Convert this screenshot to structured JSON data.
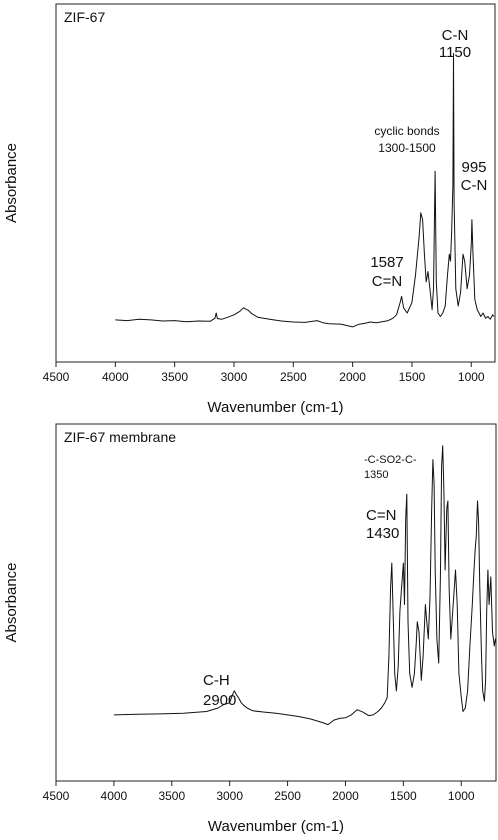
{
  "chart_data": [
    {
      "type": "line",
      "title": "ZIF-67",
      "xlabel": "Wavenumber (cm-1)",
      "ylabel": "Absorbance",
      "xlim": [
        4500,
        800
      ],
      "xticks": [
        4500,
        4000,
        3500,
        3000,
        2500,
        2000,
        1500,
        1000
      ],
      "ylim": [
        0,
        1
      ],
      "grid": false,
      "annotations": [
        {
          "lines": [
            "C-N",
            "1150"
          ],
          "x": 1150
        },
        {
          "lines": [
            "cyclic bonds",
            "1300-1500"
          ],
          "x": 1400
        },
        {
          "lines": [
            "995",
            "C-N"
          ],
          "x": 995
        },
        {
          "lines": [
            "1587",
            "C=N"
          ],
          "x": 1587
        }
      ],
      "series": [
        {
          "values": [
            [
              4000,
              0.11
            ],
            [
              3900,
              0.108
            ],
            [
              3800,
              0.112
            ],
            [
              3700,
              0.11
            ],
            [
              3600,
              0.107
            ],
            [
              3500,
              0.108
            ],
            [
              3400,
              0.105
            ],
            [
              3300,
              0.107
            ],
            [
              3200,
              0.106
            ],
            [
              3160,
              0.115
            ],
            [
              3150,
              0.13
            ],
            [
              3140,
              0.114
            ],
            [
              3100,
              0.112
            ],
            [
              3050,
              0.118
            ],
            [
              3000,
              0.125
            ],
            [
              2950,
              0.135
            ],
            [
              2920,
              0.145
            ],
            [
              2880,
              0.138
            ],
            [
              2850,
              0.128
            ],
            [
              2800,
              0.118
            ],
            [
              2700,
              0.112
            ],
            [
              2600,
              0.107
            ],
            [
              2500,
              0.104
            ],
            [
              2400,
              0.103
            ],
            [
              2300,
              0.108
            ],
            [
              2250,
              0.102
            ],
            [
              2200,
              0.099
            ],
            [
              2100,
              0.098
            ],
            [
              2050,
              0.094
            ],
            [
              2000,
              0.09
            ],
            [
              1950,
              0.097
            ],
            [
              1900,
              0.1
            ],
            [
              1850,
              0.104
            ],
            [
              1800,
              0.102
            ],
            [
              1750,
              0.105
            ],
            [
              1700,
              0.108
            ],
            [
              1660,
              0.115
            ],
            [
              1630,
              0.125
            ],
            [
              1600,
              0.16
            ],
            [
              1587,
              0.178
            ],
            [
              1570,
              0.145
            ],
            [
              1540,
              0.13
            ],
            [
              1500,
              0.16
            ],
            [
              1470,
              0.24
            ],
            [
              1440,
              0.35
            ],
            [
              1425,
              0.42
            ],
            [
              1410,
              0.4
            ],
            [
              1395,
              0.3
            ],
            [
              1380,
              0.22
            ],
            [
              1365,
              0.25
            ],
            [
              1345,
              0.19
            ],
            [
              1330,
              0.14
            ],
            [
              1318,
              0.2
            ],
            [
              1305,
              0.54
            ],
            [
              1295,
              0.22
            ],
            [
              1280,
              0.13
            ],
            [
              1260,
              0.12
            ],
            [
              1240,
              0.13
            ],
            [
              1220,
              0.15
            ],
            [
              1200,
              0.24
            ],
            [
              1185,
              0.3
            ],
            [
              1175,
              0.28
            ],
            [
              1165,
              0.37
            ],
            [
              1155,
              0.5
            ],
            [
              1150,
              0.88
            ],
            [
              1145,
              0.45
            ],
            [
              1130,
              0.2
            ],
            [
              1110,
              0.15
            ],
            [
              1090,
              0.19
            ],
            [
              1070,
              0.3
            ],
            [
              1055,
              0.28
            ],
            [
              1035,
              0.2
            ],
            [
              1015,
              0.24
            ],
            [
              1000,
              0.33
            ],
            [
              995,
              0.4
            ],
            [
              985,
              0.3
            ],
            [
              970,
              0.17
            ],
            [
              950,
              0.14
            ],
            [
              920,
              0.12
            ],
            [
              900,
              0.13
            ],
            [
              880,
              0.115
            ],
            [
              860,
              0.12
            ],
            [
              840,
              0.112
            ],
            [
              820,
              0.125
            ],
            [
              810,
              0.12
            ]
          ]
        }
      ]
    },
    {
      "type": "line",
      "title": "ZIF-67 membrane",
      "xlabel": "Wavenumber (cm-1)",
      "ylabel": "Absorbance",
      "xlim": [
        4500,
        700
      ],
      "xticks": [
        4500,
        4000,
        3500,
        3000,
        2500,
        2000,
        1500,
        1000
      ],
      "ylim": [
        0,
        1
      ],
      "grid": false,
      "annotations": [
        {
          "lines": [
            "-C-SO2-C-",
            "1350"
          ],
          "x": 1350
        },
        {
          "lines": [
            "C=N",
            "1430"
          ],
          "x": 1430
        },
        {
          "lines": [
            "C-H",
            "2900"
          ],
          "x": 2900
        }
      ],
      "series": [
        {
          "values": [
            [
              4000,
              0.18
            ],
            [
              3800,
              0.182
            ],
            [
              3600,
              0.183
            ],
            [
              3400,
              0.185
            ],
            [
              3200,
              0.19
            ],
            [
              3100,
              0.2
            ],
            [
              3050,
              0.21
            ],
            [
              3000,
              0.215
            ],
            [
              2980,
              0.235
            ],
            [
              2960,
              0.25
            ],
            [
              2945,
              0.24
            ],
            [
              2925,
              0.23
            ],
            [
              2900,
              0.215
            ],
            [
              2880,
              0.208
            ],
            [
              2850,
              0.2
            ],
            [
              2800,
              0.192
            ],
            [
              2700,
              0.188
            ],
            [
              2600,
              0.185
            ],
            [
              2500,
              0.18
            ],
            [
              2400,
              0.175
            ],
            [
              2300,
              0.168
            ],
            [
              2200,
              0.158
            ],
            [
              2150,
              0.152
            ],
            [
              2100,
              0.165
            ],
            [
              2050,
              0.17
            ],
            [
              2000,
              0.172
            ],
            [
              1950,
              0.18
            ],
            [
              1900,
              0.195
            ],
            [
              1850,
              0.188
            ],
            [
              1800,
              0.178
            ],
            [
              1760,
              0.18
            ],
            [
              1720,
              0.19
            ],
            [
              1690,
              0.2
            ],
            [
              1660,
              0.215
            ],
            [
              1640,
              0.23
            ],
            [
              1625,
              0.35
            ],
            [
              1610,
              0.55
            ],
            [
              1600,
              0.62
            ],
            [
              1590,
              0.5
            ],
            [
              1575,
              0.3
            ],
            [
              1560,
              0.25
            ],
            [
              1545,
              0.32
            ],
            [
              1530,
              0.48
            ],
            [
              1515,
              0.55
            ],
            [
              1500,
              0.62
            ],
            [
              1490,
              0.5
            ],
            [
              1480,
              0.75
            ],
            [
              1470,
              0.82
            ],
            [
              1460,
              0.45
            ],
            [
              1445,
              0.3
            ],
            [
              1425,
              0.26
            ],
            [
              1405,
              0.3
            ],
            [
              1390,
              0.38
            ],
            [
              1380,
              0.45
            ],
            [
              1365,
              0.42
            ],
            [
              1345,
              0.28
            ],
            [
              1330,
              0.35
            ],
            [
              1310,
              0.5
            ],
            [
              1300,
              0.46
            ],
            [
              1285,
              0.4
            ],
            [
              1270,
              0.52
            ],
            [
              1255,
              0.78
            ],
            [
              1245,
              0.92
            ],
            [
              1235,
              0.85
            ],
            [
              1225,
              0.6
            ],
            [
              1210,
              0.4
            ],
            [
              1195,
              0.33
            ],
            [
              1180,
              0.58
            ],
            [
              1170,
              0.9
            ],
            [
              1160,
              0.96
            ],
            [
              1150,
              0.83
            ],
            [
              1140,
              0.6
            ],
            [
              1125,
              0.78
            ],
            [
              1115,
              0.8
            ],
            [
              1105,
              0.55
            ],
            [
              1090,
              0.4
            ],
            [
              1070,
              0.5
            ],
            [
              1050,
              0.6
            ],
            [
              1035,
              0.5
            ],
            [
              1020,
              0.3
            ],
            [
              1000,
              0.23
            ],
            [
              985,
              0.19
            ],
            [
              965,
              0.2
            ],
            [
              945,
              0.25
            ],
            [
              925,
              0.38
            ],
            [
              905,
              0.5
            ],
            [
              890,
              0.6
            ],
            [
              880,
              0.66
            ],
            [
              870,
              0.7
            ],
            [
              860,
              0.8
            ],
            [
              850,
              0.74
            ],
            [
              840,
              0.55
            ],
            [
              825,
              0.35
            ],
            [
              815,
              0.25
            ],
            [
              800,
              0.22
            ],
            [
              790,
              0.28
            ],
            [
              780,
              0.48
            ],
            [
              770,
              0.6
            ],
            [
              760,
              0.5
            ],
            [
              745,
              0.58
            ],
            [
              730,
              0.42
            ],
            [
              715,
              0.38
            ],
            [
              705,
              0.4
            ],
            [
              700,
              0.39
            ]
          ]
        }
      ]
    }
  ]
}
